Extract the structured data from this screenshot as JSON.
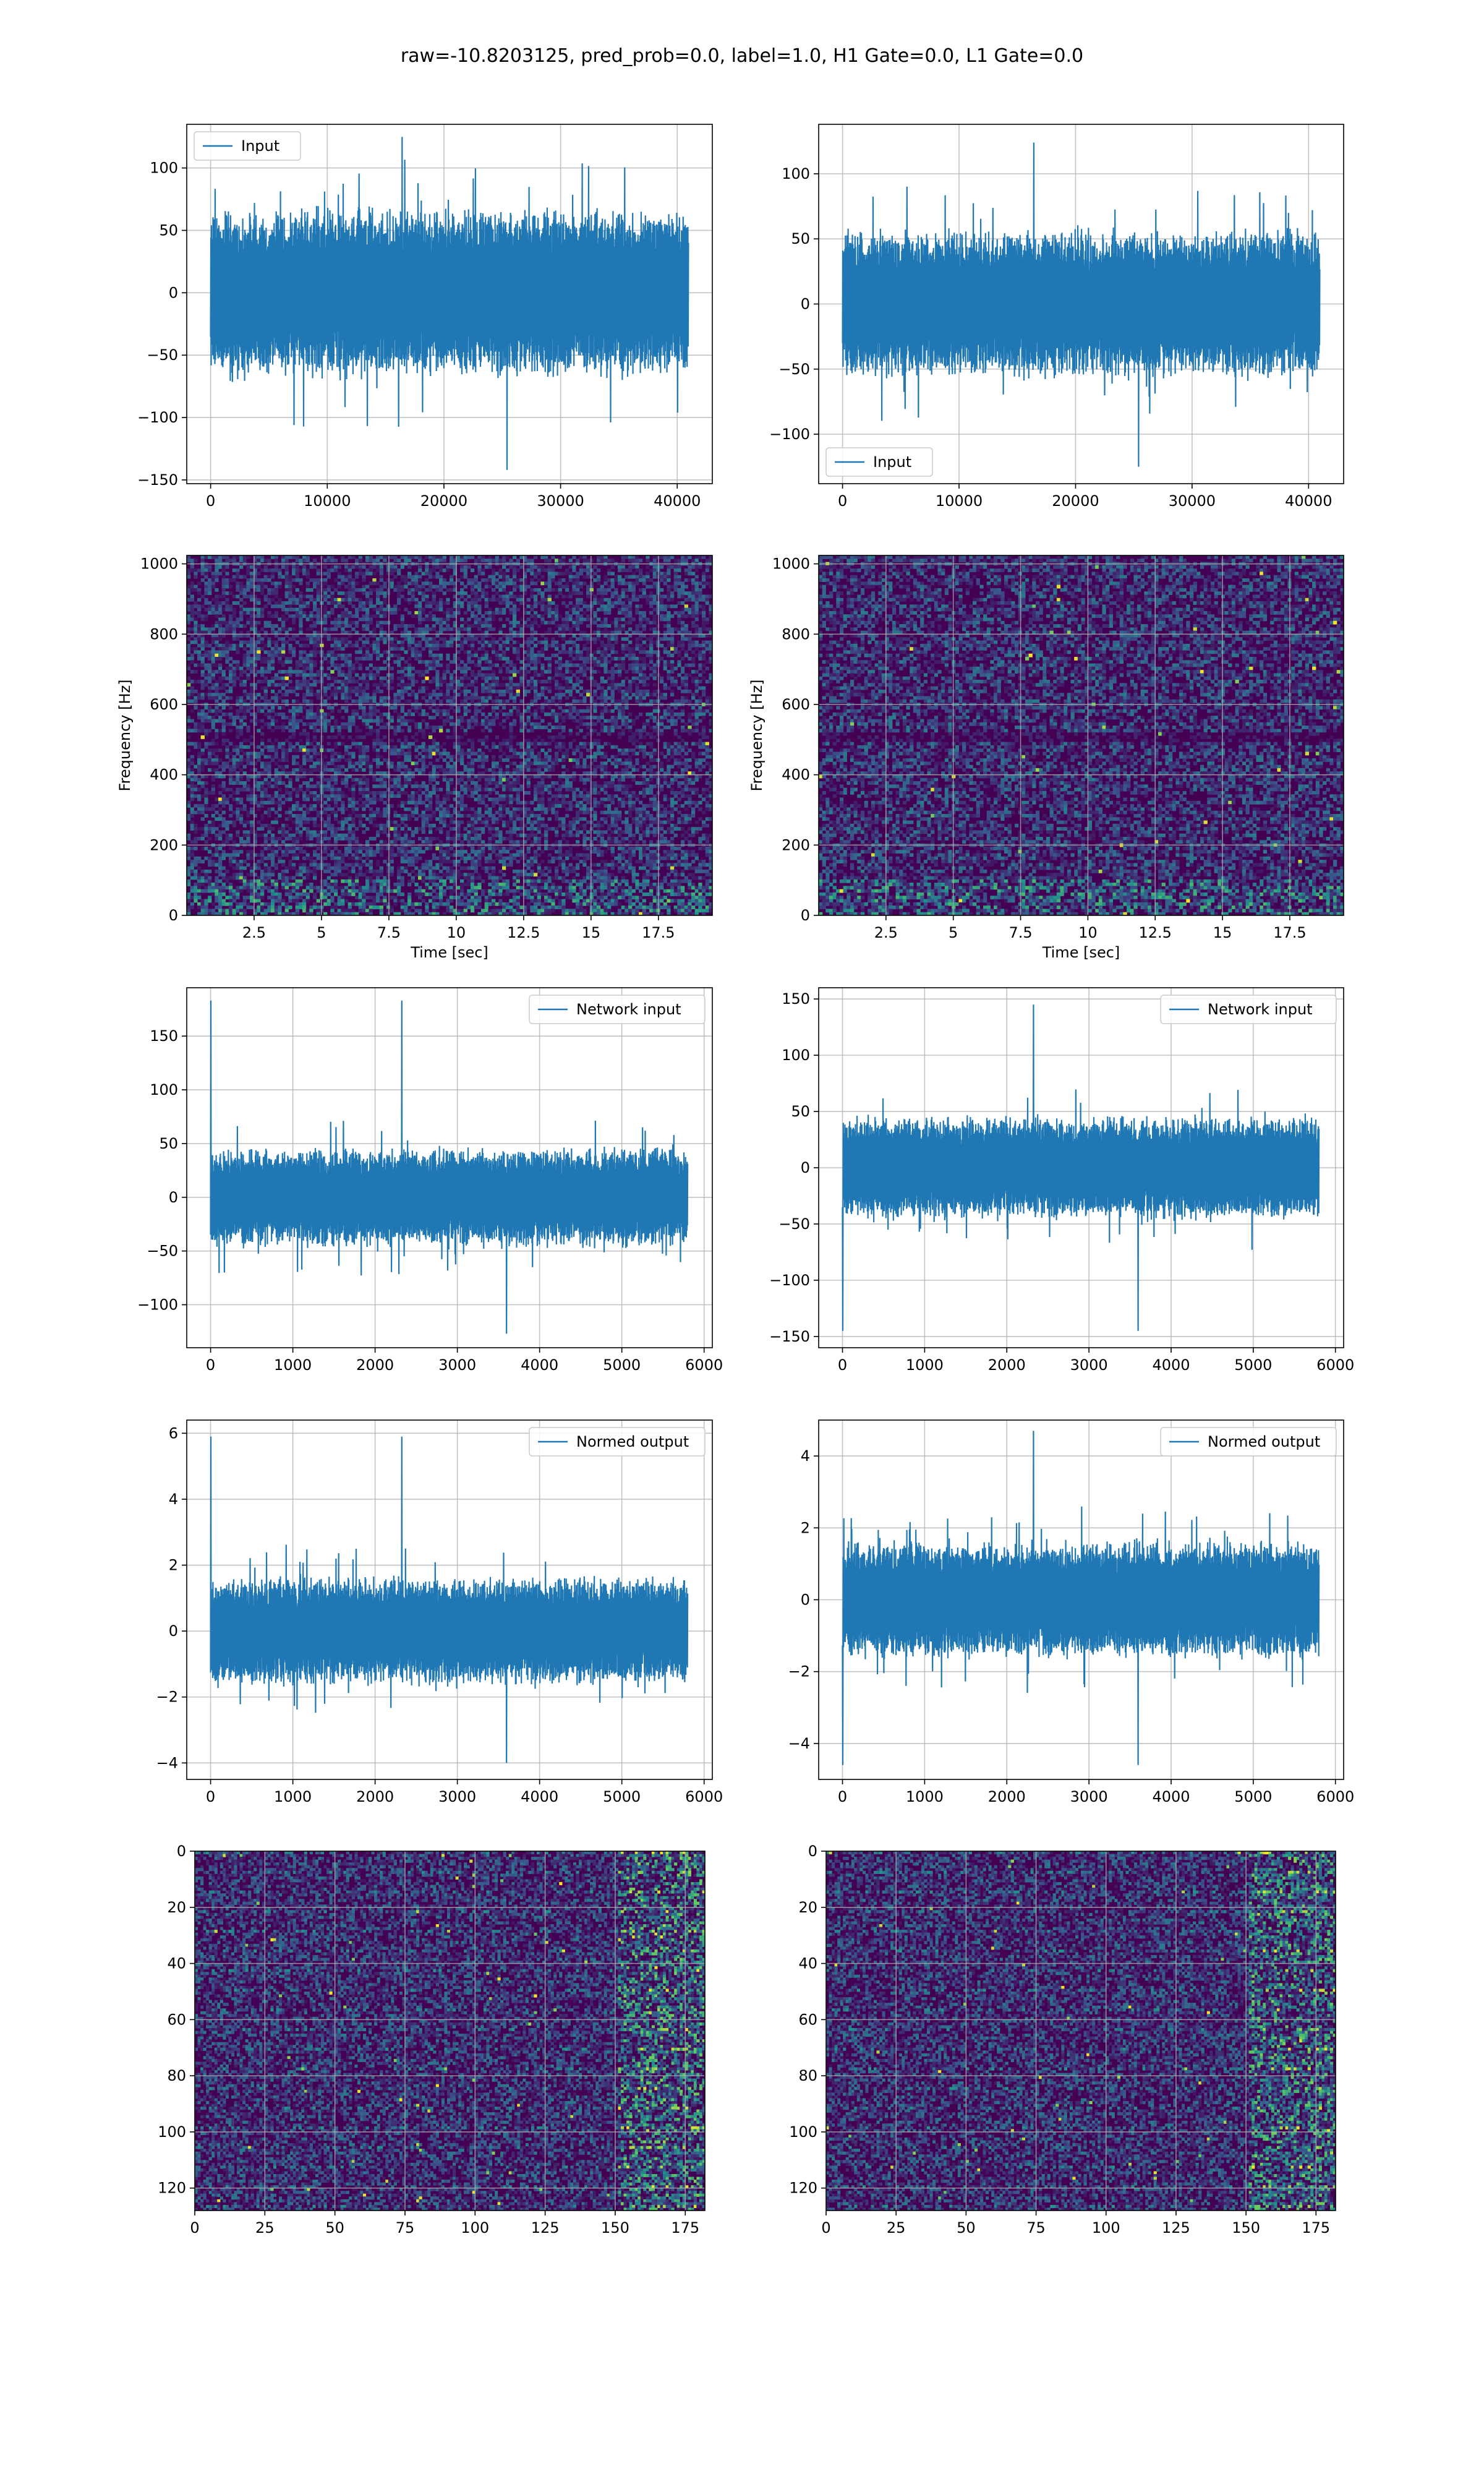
{
  "title": "raw=-10.8203125, pred_prob=0.0, label=1.0, H1 Gate=0.0, L1 Gate=0.0",
  "colors": {
    "line": "#1f77b4",
    "grid": "#b0b0b0",
    "viridis_low": "#440154",
    "viridis_mid": "#21918c",
    "viridis_high": "#fde725"
  },
  "chart_data": [
    {
      "id": "input-h1",
      "type": "line",
      "series": [
        {
          "name": "Input"
        }
      ],
      "legend": "upper left",
      "xlim": [
        -2048,
        43008
      ],
      "ylim": [
        -153,
        135
      ],
      "xticks": [
        0,
        10000,
        20000,
        30000,
        40000
      ],
      "yticks": [
        -150,
        -100,
        -50,
        0,
        50,
        100
      ],
      "data_x_range": [
        0,
        40960
      ],
      "amplitude": {
        "typical": 62,
        "extreme_min": -142,
        "extreme_max": 125
      },
      "grid": true
    },
    {
      "id": "input-l1",
      "type": "line",
      "series": [
        {
          "name": "Input"
        }
      ],
      "legend": "lower left",
      "xlim": [
        -2048,
        43008
      ],
      "ylim": [
        -138,
        138
      ],
      "xticks": [
        0,
        10000,
        20000,
        30000,
        40000
      ],
      "yticks": [
        -100,
        -50,
        0,
        50,
        100
      ],
      "data_x_range": [
        0,
        40960
      ],
      "amplitude": {
        "typical": 52,
        "extreme_min": -125,
        "extreme_max": 124
      },
      "grid": true
    },
    {
      "id": "spec-h1",
      "type": "heatmap",
      "xlabel": "Time [sec]",
      "ylabel": "Frequency [Hz]",
      "xlim": [
        0,
        19.5
      ],
      "ylim": [
        0,
        1024
      ],
      "xticks": [
        2.5,
        5.0,
        7.5,
        10.0,
        12.5,
        15.0,
        17.5
      ],
      "yticks": [
        0,
        200,
        400,
        600,
        800,
        1000
      ],
      "colormap": "viridis",
      "grid": true
    },
    {
      "id": "spec-l1",
      "type": "heatmap",
      "xlabel": "Time [sec]",
      "ylabel": "Frequency [Hz]",
      "xlim": [
        0,
        19.5
      ],
      "ylim": [
        0,
        1024
      ],
      "xticks": [
        2.5,
        5.0,
        7.5,
        10.0,
        12.5,
        15.0,
        17.5
      ],
      "yticks": [
        0,
        200,
        400,
        600,
        800,
        1000
      ],
      "colormap": "viridis",
      "grid": true
    },
    {
      "id": "net-h1",
      "type": "line",
      "series": [
        {
          "name": "Network input"
        }
      ],
      "legend": "upper right",
      "xlim": [
        -290,
        6100
      ],
      "ylim": [
        -140,
        195
      ],
      "xticks": [
        0,
        1000,
        2000,
        3000,
        4000,
        5000,
        6000
      ],
      "yticks": [
        -100,
        -50,
        0,
        50,
        100,
        150
      ],
      "data_x_range": [
        0,
        5800
      ],
      "amplitude": {
        "typical": 42,
        "extreme_min": -127,
        "extreme_max": 183
      },
      "grid": true
    },
    {
      "id": "net-l1",
      "type": "line",
      "series": [
        {
          "name": "Network input"
        }
      ],
      "legend": "upper right",
      "xlim": [
        -290,
        6100
      ],
      "ylim": [
        -160,
        160
      ],
      "xticks": [
        0,
        1000,
        2000,
        3000,
        4000,
        5000,
        6000
      ],
      "yticks": [
        -150,
        -100,
        -50,
        0,
        50,
        100,
        150
      ],
      "data_x_range": [
        0,
        5800
      ],
      "amplitude": {
        "typical": 42,
        "extreme_min": -145,
        "extreme_max": 145
      },
      "grid": true
    },
    {
      "id": "norm-h1",
      "type": "line",
      "series": [
        {
          "name": "Normed output"
        }
      ],
      "legend": "upper right",
      "xlim": [
        -290,
        6100
      ],
      "ylim": [
        -4.5,
        6.4
      ],
      "xticks": [
        0,
        1000,
        2000,
        3000,
        4000,
        5000,
        6000
      ],
      "yticks": [
        -4,
        -2,
        0,
        2,
        4,
        6
      ],
      "data_x_range": [
        0,
        5800
      ],
      "amplitude": {
        "typical": 1.5,
        "extreme_min": -4.0,
        "extreme_max": 5.9
      },
      "grid": true
    },
    {
      "id": "norm-l1",
      "type": "line",
      "series": [
        {
          "name": "Normed output"
        }
      ],
      "legend": "upper right",
      "xlim": [
        -290,
        6100
      ],
      "ylim": [
        -5.0,
        5.0
      ],
      "xticks": [
        0,
        1000,
        2000,
        3000,
        4000,
        5000,
        6000
      ],
      "yticks": [
        -4,
        -2,
        0,
        2,
        4
      ],
      "data_x_range": [
        0,
        5800
      ],
      "amplitude": {
        "typical": 1.5,
        "extreme_min": -4.6,
        "extreme_max": 4.7
      },
      "grid": true
    },
    {
      "id": "img-h1",
      "type": "heatmap",
      "xlim": [
        0,
        182
      ],
      "ylim": [
        128,
        0
      ],
      "xticks": [
        0,
        25,
        50,
        75,
        100,
        125,
        150,
        175
      ],
      "yticks": [
        0,
        20,
        40,
        60,
        80,
        100,
        120
      ],
      "colormap": "viridis",
      "grid": true
    },
    {
      "id": "img-l1",
      "type": "heatmap",
      "xlim": [
        0,
        182
      ],
      "ylim": [
        128,
        0
      ],
      "xticks": [
        0,
        25,
        50,
        75,
        100,
        125,
        150,
        175
      ],
      "yticks": [
        0,
        20,
        40,
        60,
        80,
        100,
        120
      ],
      "colormap": "viridis",
      "grid": true
    }
  ]
}
